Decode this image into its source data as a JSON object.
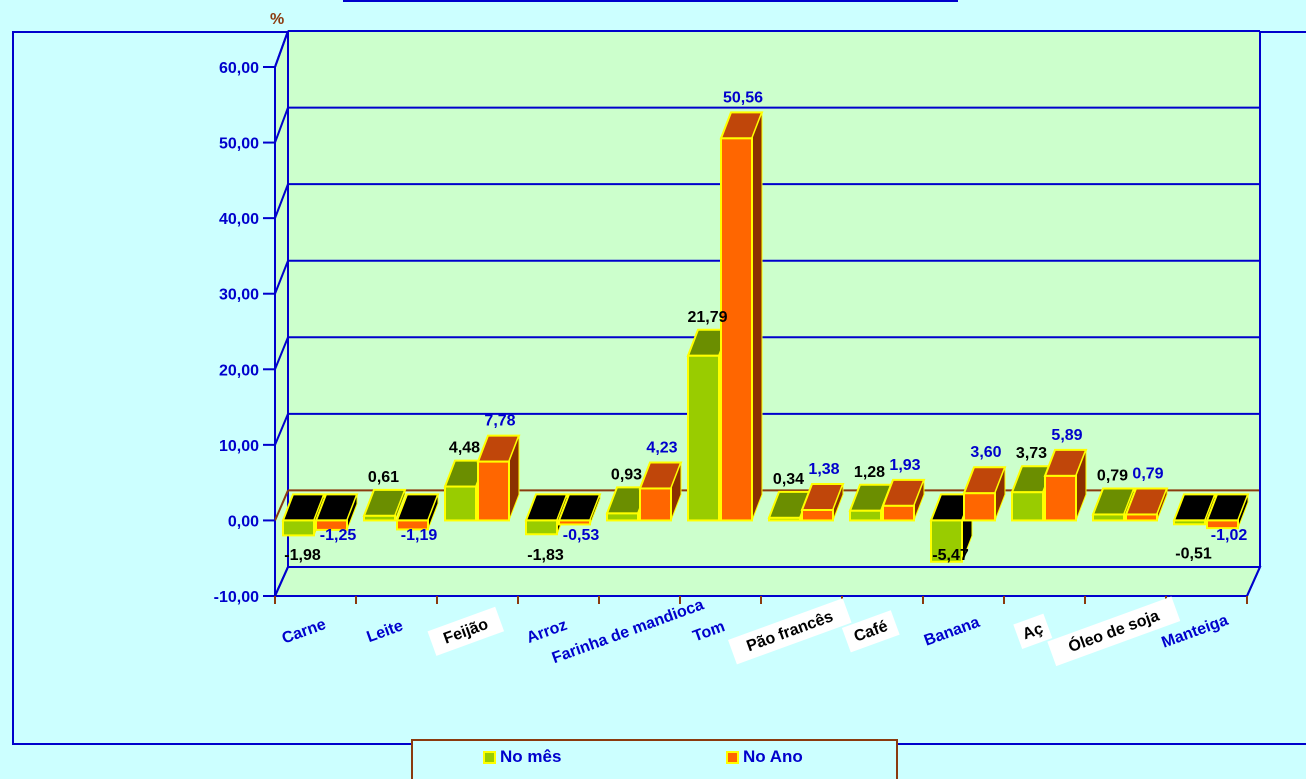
{
  "chart_data": {
    "type": "bar",
    "title": "",
    "ylabel": "%",
    "xlabel": "",
    "ylim": [
      -10,
      60
    ],
    "yticks": [
      "60,00",
      "50,00",
      "40,00",
      "30,00",
      "20,00",
      "10,00",
      "0,00",
      "-10,00"
    ],
    "grid": true,
    "legend_position": "bottom",
    "categories": [
      "Carne",
      "Leite",
      "Feijão",
      "Arroz",
      "Farinha de mandioca",
      "Tom",
      "Pão francês",
      "Café",
      "Banana",
      "Aç",
      "Óleo de soja",
      "Manteiga"
    ],
    "series": [
      {
        "name": "No mês",
        "values": [
          -1.98,
          0.61,
          4.48,
          -1.83,
          0.93,
          21.79,
          0.34,
          1.28,
          -5.47,
          3.73,
          0.79,
          -0.51
        ],
        "labels": [
          "-1,98",
          "0,61",
          "4,48",
          "-1,83",
          "0,93",
          "21,79",
          "0,34",
          "1,28",
          "-5,47",
          "3,73",
          "0,79",
          "-0,51"
        ]
      },
      {
        "name": "No Ano",
        "values": [
          -1.25,
          -1.19,
          7.78,
          -0.53,
          4.23,
          50.56,
          1.38,
          1.93,
          3.6,
          5.89,
          0.79,
          -1.02
        ],
        "labels": [
          "-1,25",
          "-1,19",
          "7,78",
          "-0,53",
          "4,23",
          "50,56",
          "1,38",
          "1,93",
          "3,60",
          "5,89",
          "0,79",
          "-1,02"
        ]
      }
    ]
  },
  "colors": {
    "background": "#ccffff",
    "plot_back": "#ccffcc",
    "grid": "#0000cc",
    "axis_text": "#0000cc",
    "series_mes": "#99cc00",
    "series_ano": "#ff6600",
    "bar_border": "#ffff00"
  }
}
